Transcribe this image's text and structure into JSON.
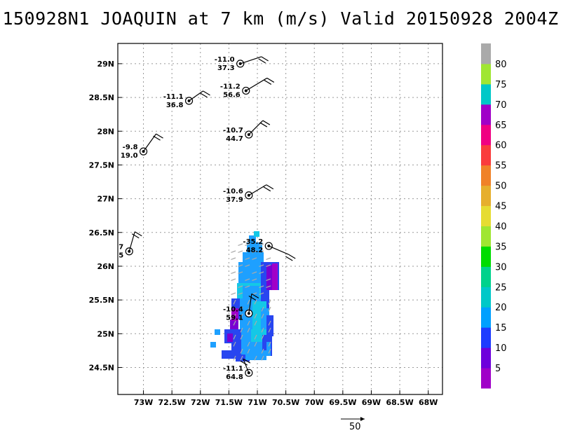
{
  "title": "150928N1 JOAQUIN at 7 km (m/s) Valid 20150928 2004Z",
  "map": {
    "lon_labels": [
      "73W",
      "72.5W",
      "72W",
      "71.5W",
      "71W",
      "70.5W",
      "70W",
      "69.5W",
      "69W",
      "68.5W",
      "68W"
    ],
    "lat_labels": [
      "29N",
      "28.5N",
      "28N",
      "27.5N",
      "27N",
      "26.5N",
      "26N",
      "25.5N",
      "25N",
      "24.5N"
    ],
    "lon_values": [
      -73,
      -72.5,
      -72,
      -71.5,
      -71,
      -70.5,
      -70,
      -69.5,
      -69,
      -68.5,
      -68
    ],
    "lat_values": [
      29,
      28.5,
      28,
      27.5,
      27,
      26.5,
      26,
      25.5,
      25,
      24.5
    ],
    "lon_range": [
      -73.45,
      -67.75
    ],
    "lat_range": [
      24.1,
      29.3
    ],
    "grid": true
  },
  "stations": [
    {
      "lon": -71.3,
      "lat": 29.0,
      "top": "-11.0",
      "bottom": "37.3"
    },
    {
      "lon": -71.2,
      "lat": 28.6,
      "top": "-11.2",
      "bottom": "56.6"
    },
    {
      "lon": -72.2,
      "lat": 28.45,
      "top": "-11.1",
      "bottom": "36.8"
    },
    {
      "lon": -71.15,
      "lat": 27.95,
      "top": "-10.7",
      "bottom": "44.7"
    },
    {
      "lon": -73.0,
      "lat": 27.7,
      "top": "-9.8",
      "bottom": "19.0"
    },
    {
      "lon": -71.15,
      "lat": 27.05,
      "top": "-10.6",
      "bottom": "37.9"
    },
    {
      "lon": -73.25,
      "lat": 26.22,
      "top": "7",
      "bottom": "5"
    },
    {
      "lon": -70.8,
      "lat": 26.3,
      "top": "-35.2",
      "bottom": "48.2"
    },
    {
      "lon": -71.15,
      "lat": 25.3,
      "top": "-10.4",
      "bottom": "59.1"
    },
    {
      "lon": -71.15,
      "lat": 24.42,
      "top": "-11.1",
      "bottom": "64.8"
    }
  ],
  "colorbar": {
    "labels": [
      "5",
      "10",
      "15",
      "20",
      "25",
      "30",
      "35",
      "40",
      "45",
      "50",
      "55",
      "60",
      "65",
      "70",
      "75",
      "80"
    ],
    "colors": [
      "#a000c8",
      "#6e00dc",
      "#1e3cff",
      "#00a0ff",
      "#00c8c8",
      "#00d28c",
      "#00dc00",
      "#a0e632",
      "#e6dc32",
      "#e6af2d",
      "#f08228",
      "#fa3c3c",
      "#f00082",
      "#a000c8",
      "#00c8c8",
      "#a0e632",
      "#aaaaaa"
    ]
  },
  "reference_vector": {
    "label": "50"
  }
}
